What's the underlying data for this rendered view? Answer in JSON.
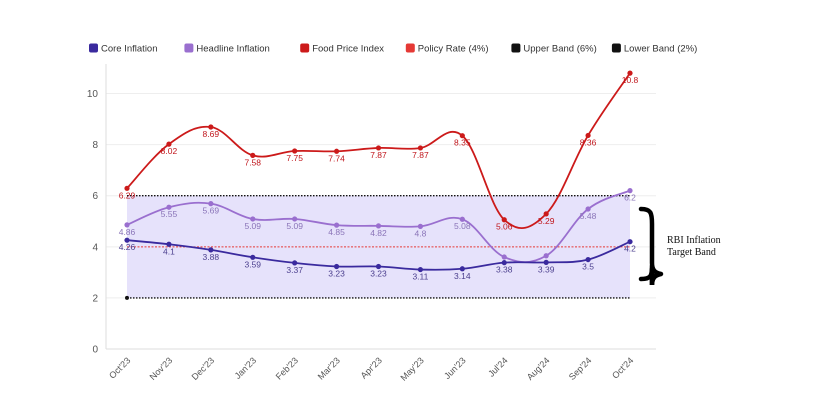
{
  "chart_data": {
    "type": "line",
    "title": "",
    "xlabel": "",
    "ylabel": "",
    "categories": [
      "Oct'23",
      "Nov'23",
      "Dec'23",
      "Jan'23",
      "Feb'23",
      "Mar'23",
      "Apr'23",
      "May'23",
      "Jun'23",
      "Jul'24",
      "Aug'24",
      "Sep'24",
      "Oct'24"
    ],
    "ylim": [
      0,
      10.8
    ],
    "yticks": [
      0,
      2,
      4,
      6,
      8,
      10
    ],
    "grid": true,
    "legend_position": "top-left",
    "series": [
      {
        "name": "Core Inflation",
        "color": "#3a2a9e",
        "values": [
          4.26,
          4.1,
          3.88,
          3.59,
          3.37,
          3.23,
          3.23,
          3.11,
          3.14,
          3.38,
          3.39,
          3.5,
          4.2
        ],
        "labels": [
          "4.26",
          "4.1",
          "3.88",
          "3.59",
          "3.37",
          "3.23",
          "3.23",
          "3.11",
          "3.14",
          "3.38",
          "3.39",
          "3.5",
          "4.2"
        ]
      },
      {
        "name": "Headline Inflation",
        "color": "#9a6fcf",
        "values": [
          4.86,
          5.55,
          5.69,
          5.09,
          5.09,
          4.85,
          4.82,
          4.8,
          5.08,
          3.6,
          3.65,
          5.48,
          6.2
        ],
        "labels": [
          "4.86",
          "5.55",
          "5.69",
          "5.09",
          "5.09",
          "4.85",
          "4.82",
          "4.8",
          "5.08",
          "",
          "",
          "5.48",
          "6.2"
        ]
      },
      {
        "name": "Food Price Index",
        "color": "#cc1a1a",
        "values": [
          6.29,
          8.02,
          8.69,
          7.58,
          7.75,
          7.74,
          7.87,
          7.87,
          8.35,
          5.06,
          5.29,
          8.36,
          10.8
        ],
        "labels": [
          "6.29",
          "8.02",
          "8.69",
          "7.58",
          "7.75",
          "7.74",
          "7.87",
          "7.87",
          "8.35",
          "5.06",
          "5.29",
          "8.36",
          "10.8"
        ]
      },
      {
        "name": "Policy Rate (4%)",
        "color": "#e53935",
        "values": [
          4,
          4,
          4,
          4,
          4,
          4,
          4,
          4,
          4,
          4,
          4,
          4,
          4
        ]
      },
      {
        "name": "Upper Band (6%)",
        "color": "#111111",
        "values": [
          6,
          6,
          6,
          6,
          6,
          6,
          6,
          6,
          6,
          6,
          6,
          6,
          6
        ]
      },
      {
        "name": "Lower Band (2%)",
        "color": "#111111",
        "values": [
          2,
          2,
          2,
          2,
          2,
          2,
          2,
          2,
          2,
          2,
          2,
          2,
          2
        ]
      }
    ],
    "band": {
      "lower": 2,
      "upper": 6,
      "fill": "#e6e2fb"
    },
    "annotation": {
      "line1": "RBI Inflation",
      "line2": "Target Band"
    }
  }
}
